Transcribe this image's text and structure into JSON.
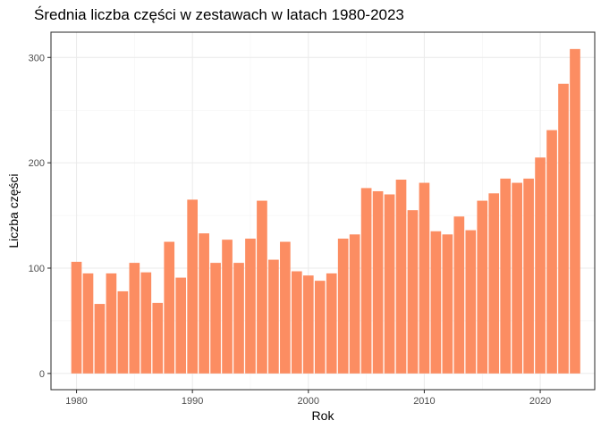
{
  "chart_data": {
    "type": "bar",
    "title": "Średnia liczba części w zestawach w latach 1980-2023",
    "xlabel": "Rok",
    "ylabel": "Liczba części",
    "bar_color": "#FC8D62",
    "grid": true,
    "legend": "none",
    "xlim": [
      1977.8,
      2024.7
    ],
    "ylim": [
      -15.4,
      324
    ],
    "x_ticks": [
      1980,
      1990,
      2000,
      2010,
      2020
    ],
    "y_ticks": [
      0,
      100,
      200,
      300
    ],
    "x": [
      1980,
      1981,
      1982,
      1983,
      1984,
      1985,
      1986,
      1987,
      1988,
      1989,
      1990,
      1991,
      1992,
      1993,
      1994,
      1995,
      1996,
      1997,
      1998,
      1999,
      2000,
      2001,
      2002,
      2003,
      2004,
      2005,
      2006,
      2007,
      2008,
      2009,
      2010,
      2011,
      2012,
      2013,
      2014,
      2015,
      2016,
      2017,
      2018,
      2019,
      2020,
      2021,
      2022,
      2023
    ],
    "values": [
      106,
      95,
      66,
      95,
      78,
      105,
      96,
      67,
      125,
      91,
      165,
      133,
      105,
      127,
      105,
      128,
      164,
      108,
      125,
      97,
      93,
      88,
      95,
      128,
      132,
      176,
      173,
      170,
      184,
      155,
      181,
      135,
      132,
      149,
      136,
      164,
      171,
      185,
      181,
      185,
      205,
      231,
      275,
      308
    ]
  }
}
